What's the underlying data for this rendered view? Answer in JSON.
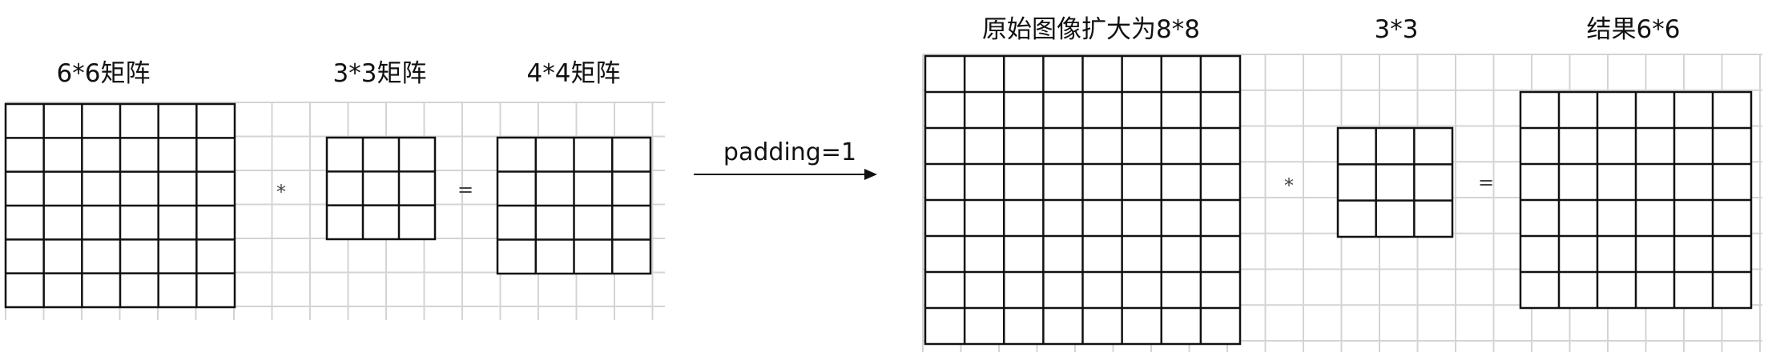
{
  "labels": {
    "left_input": "6*6矩阵",
    "left_kernel": "3*3矩阵",
    "left_output": "4*4矩阵",
    "arrow": "padding=1",
    "right_input": "原始图像扩大为8*8",
    "right_kernel": "3*3",
    "right_output": "结果6*6"
  },
  "operators": {
    "conv_left": "*",
    "eq_left": "=",
    "conv_right": "*",
    "eq_right": "="
  },
  "matrices": {
    "left_input": {
      "rows": 6,
      "cols": 6
    },
    "left_kernel": {
      "rows": 3,
      "cols": 3
    },
    "left_output": {
      "rows": 4,
      "cols": 4
    },
    "right_input": {
      "rows": 8,
      "cols": 8
    },
    "right_kernel": {
      "rows": 3,
      "cols": 3
    },
    "right_output": {
      "rows": 6,
      "cols": 6
    }
  },
  "colors": {
    "matrix_line": "#111111",
    "background_grid": "#d4d4d4",
    "arrow": "#111111"
  }
}
